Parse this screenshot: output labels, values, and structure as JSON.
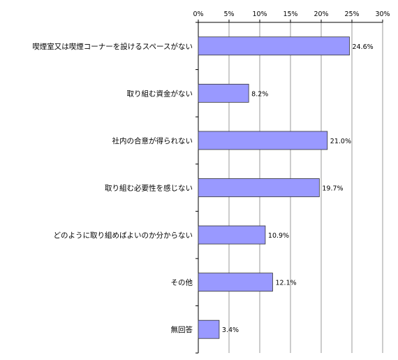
{
  "chart_data": {
    "type": "bar",
    "orientation": "horizontal",
    "categories": [
      "喫煙室又は喫煙コーナーを設けるスペースがない",
      "取り組む資金がない",
      "社内の合意が得られない",
      "取り組む必要性を感じない",
      "どのように取り組めばよいのか分からない",
      "その他",
      "無回答"
    ],
    "values": [
      24.6,
      8.2,
      21.0,
      19.7,
      10.9,
      12.1,
      3.4
    ],
    "data_labels": [
      "24.6%",
      "8.2%",
      "21.0%",
      "19.7%",
      "10.9%",
      "12.1%",
      "3.4%"
    ],
    "xticks": [
      0,
      5,
      10,
      15,
      20,
      25,
      30
    ],
    "xtick_labels": [
      "0%",
      "5%",
      "10%",
      "15%",
      "20%",
      "25%",
      "30%"
    ],
    "xlim": [
      0,
      30
    ],
    "xaxis_position": "top",
    "grid": true,
    "title": "",
    "xlabel": "",
    "ylabel": "",
    "colors": {
      "bar_fill": "#9999ff",
      "bar_stroke": "#333333",
      "grid": "#808080",
      "axis": "#000000"
    }
  }
}
